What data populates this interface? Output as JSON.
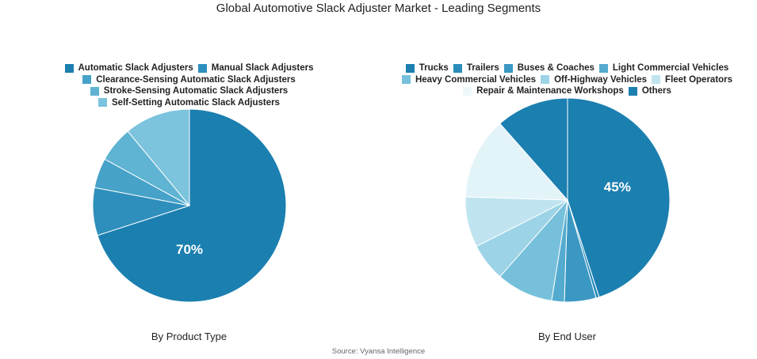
{
  "title": "Global Automotive Slack Adjuster Market - Leading Segments",
  "source": "Source: Vyansa Intelligence",
  "chart_data": [
    {
      "type": "pie",
      "caption": "By Product Type",
      "legend_rows": [
        [
          0,
          1
        ],
        [
          2
        ],
        [
          3
        ],
        [
          4
        ]
      ],
      "slices": [
        {
          "label": "Automatic Slack Adjusters",
          "value": 70,
          "color": "#1b7fb0",
          "show_label": true
        },
        {
          "label": "Manual Slack Adjusters",
          "value": 8,
          "color": "#2e8fbd",
          "show_label": false
        },
        {
          "label": "Clearance-Sensing Automatic Slack Adjusters",
          "value": 5,
          "color": "#46a2c8",
          "show_label": false
        },
        {
          "label": "Stroke-Sensing Automatic Slack Adjusters",
          "value": 6,
          "color": "#5fb3d3",
          "show_label": false
        },
        {
          "label": "Self-Setting Automatic Slack Adjusters",
          "value": 11,
          "color": "#7cc3dd",
          "show_label": false
        }
      ],
      "value_labels": [
        "70%"
      ]
    },
    {
      "type": "pie",
      "caption": "By End User",
      "legend_rows": [
        [
          0,
          1,
          2,
          3
        ],
        [
          4,
          5,
          6
        ],
        [
          7,
          8
        ]
      ],
      "slices": [
        {
          "label": "Trucks",
          "value": 45,
          "color": "#1b7fb0",
          "show_label": true
        },
        {
          "label": "Trailers",
          "value": 0.5,
          "color": "#2a8cbb",
          "show_label": false
        },
        {
          "label": "Buses & Coaches",
          "value": 5,
          "color": "#3a98c3",
          "show_label": false
        },
        {
          "label": "Light Commercial Vehicles",
          "value": 2,
          "color": "#55abcf",
          "show_label": false
        },
        {
          "label": "Heavy Commercial Vehicles",
          "value": 9,
          "color": "#76c0db",
          "show_label": false
        },
        {
          "label": "Off-Highway Vehicles",
          "value": 6,
          "color": "#9dd3e6",
          "show_label": false
        },
        {
          "label": "Fleet Operators",
          "value": 8,
          "color": "#bfe4ef",
          "show_label": false
        },
        {
          "label": "Repair & Maintenance Workshops",
          "value": 13,
          "color": "#e3f4f9",
          "show_label": false
        },
        {
          "label": "Others",
          "value": 11.5,
          "color": "#1b7fb0",
          "show_label": false
        }
      ],
      "value_labels": [
        "45%"
      ]
    }
  ]
}
